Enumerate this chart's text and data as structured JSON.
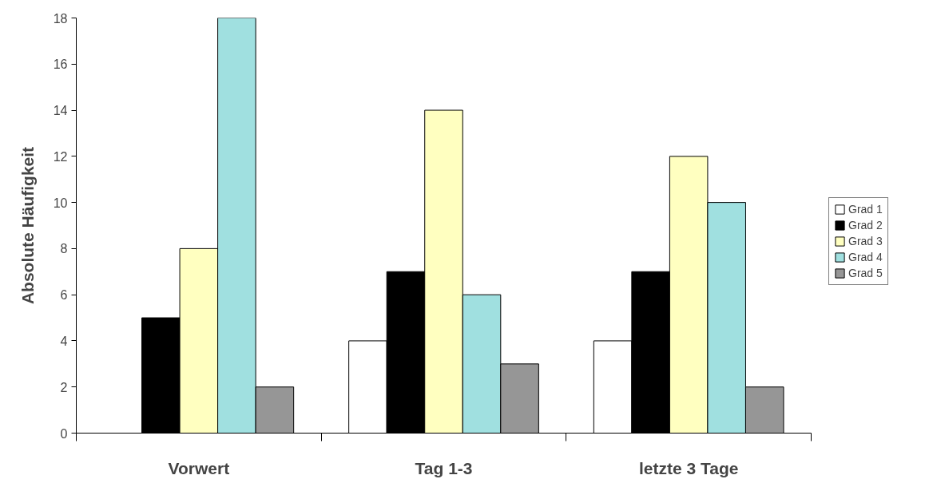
{
  "chart_data": {
    "type": "bar",
    "ylabel": "Absolute Häufigkeit",
    "categories": [
      "Vorwert",
      "Tag 1-3",
      "letzte 3 Tage"
    ],
    "series": [
      {
        "name": "Grad 1",
        "color": "#ffffff",
        "values": [
          null,
          4,
          4
        ]
      },
      {
        "name": "Grad 2",
        "color": "#000000",
        "values": [
          5,
          7,
          7
        ]
      },
      {
        "name": "Grad 3",
        "color": "#ffffc0",
        "values": [
          8,
          14,
          12
        ]
      },
      {
        "name": "Grad 4",
        "color": "#a0e0e0",
        "values": [
          18,
          6,
          10
        ]
      },
      {
        "name": "Grad 5",
        "color": "#969696",
        "values": [
          2,
          3,
          2
        ]
      }
    ],
    "ylim": [
      0,
      18
    ],
    "yticks": [
      0,
      2,
      4,
      6,
      8,
      10,
      12,
      14,
      16,
      18
    ],
    "grid": false,
    "legend": "right"
  }
}
